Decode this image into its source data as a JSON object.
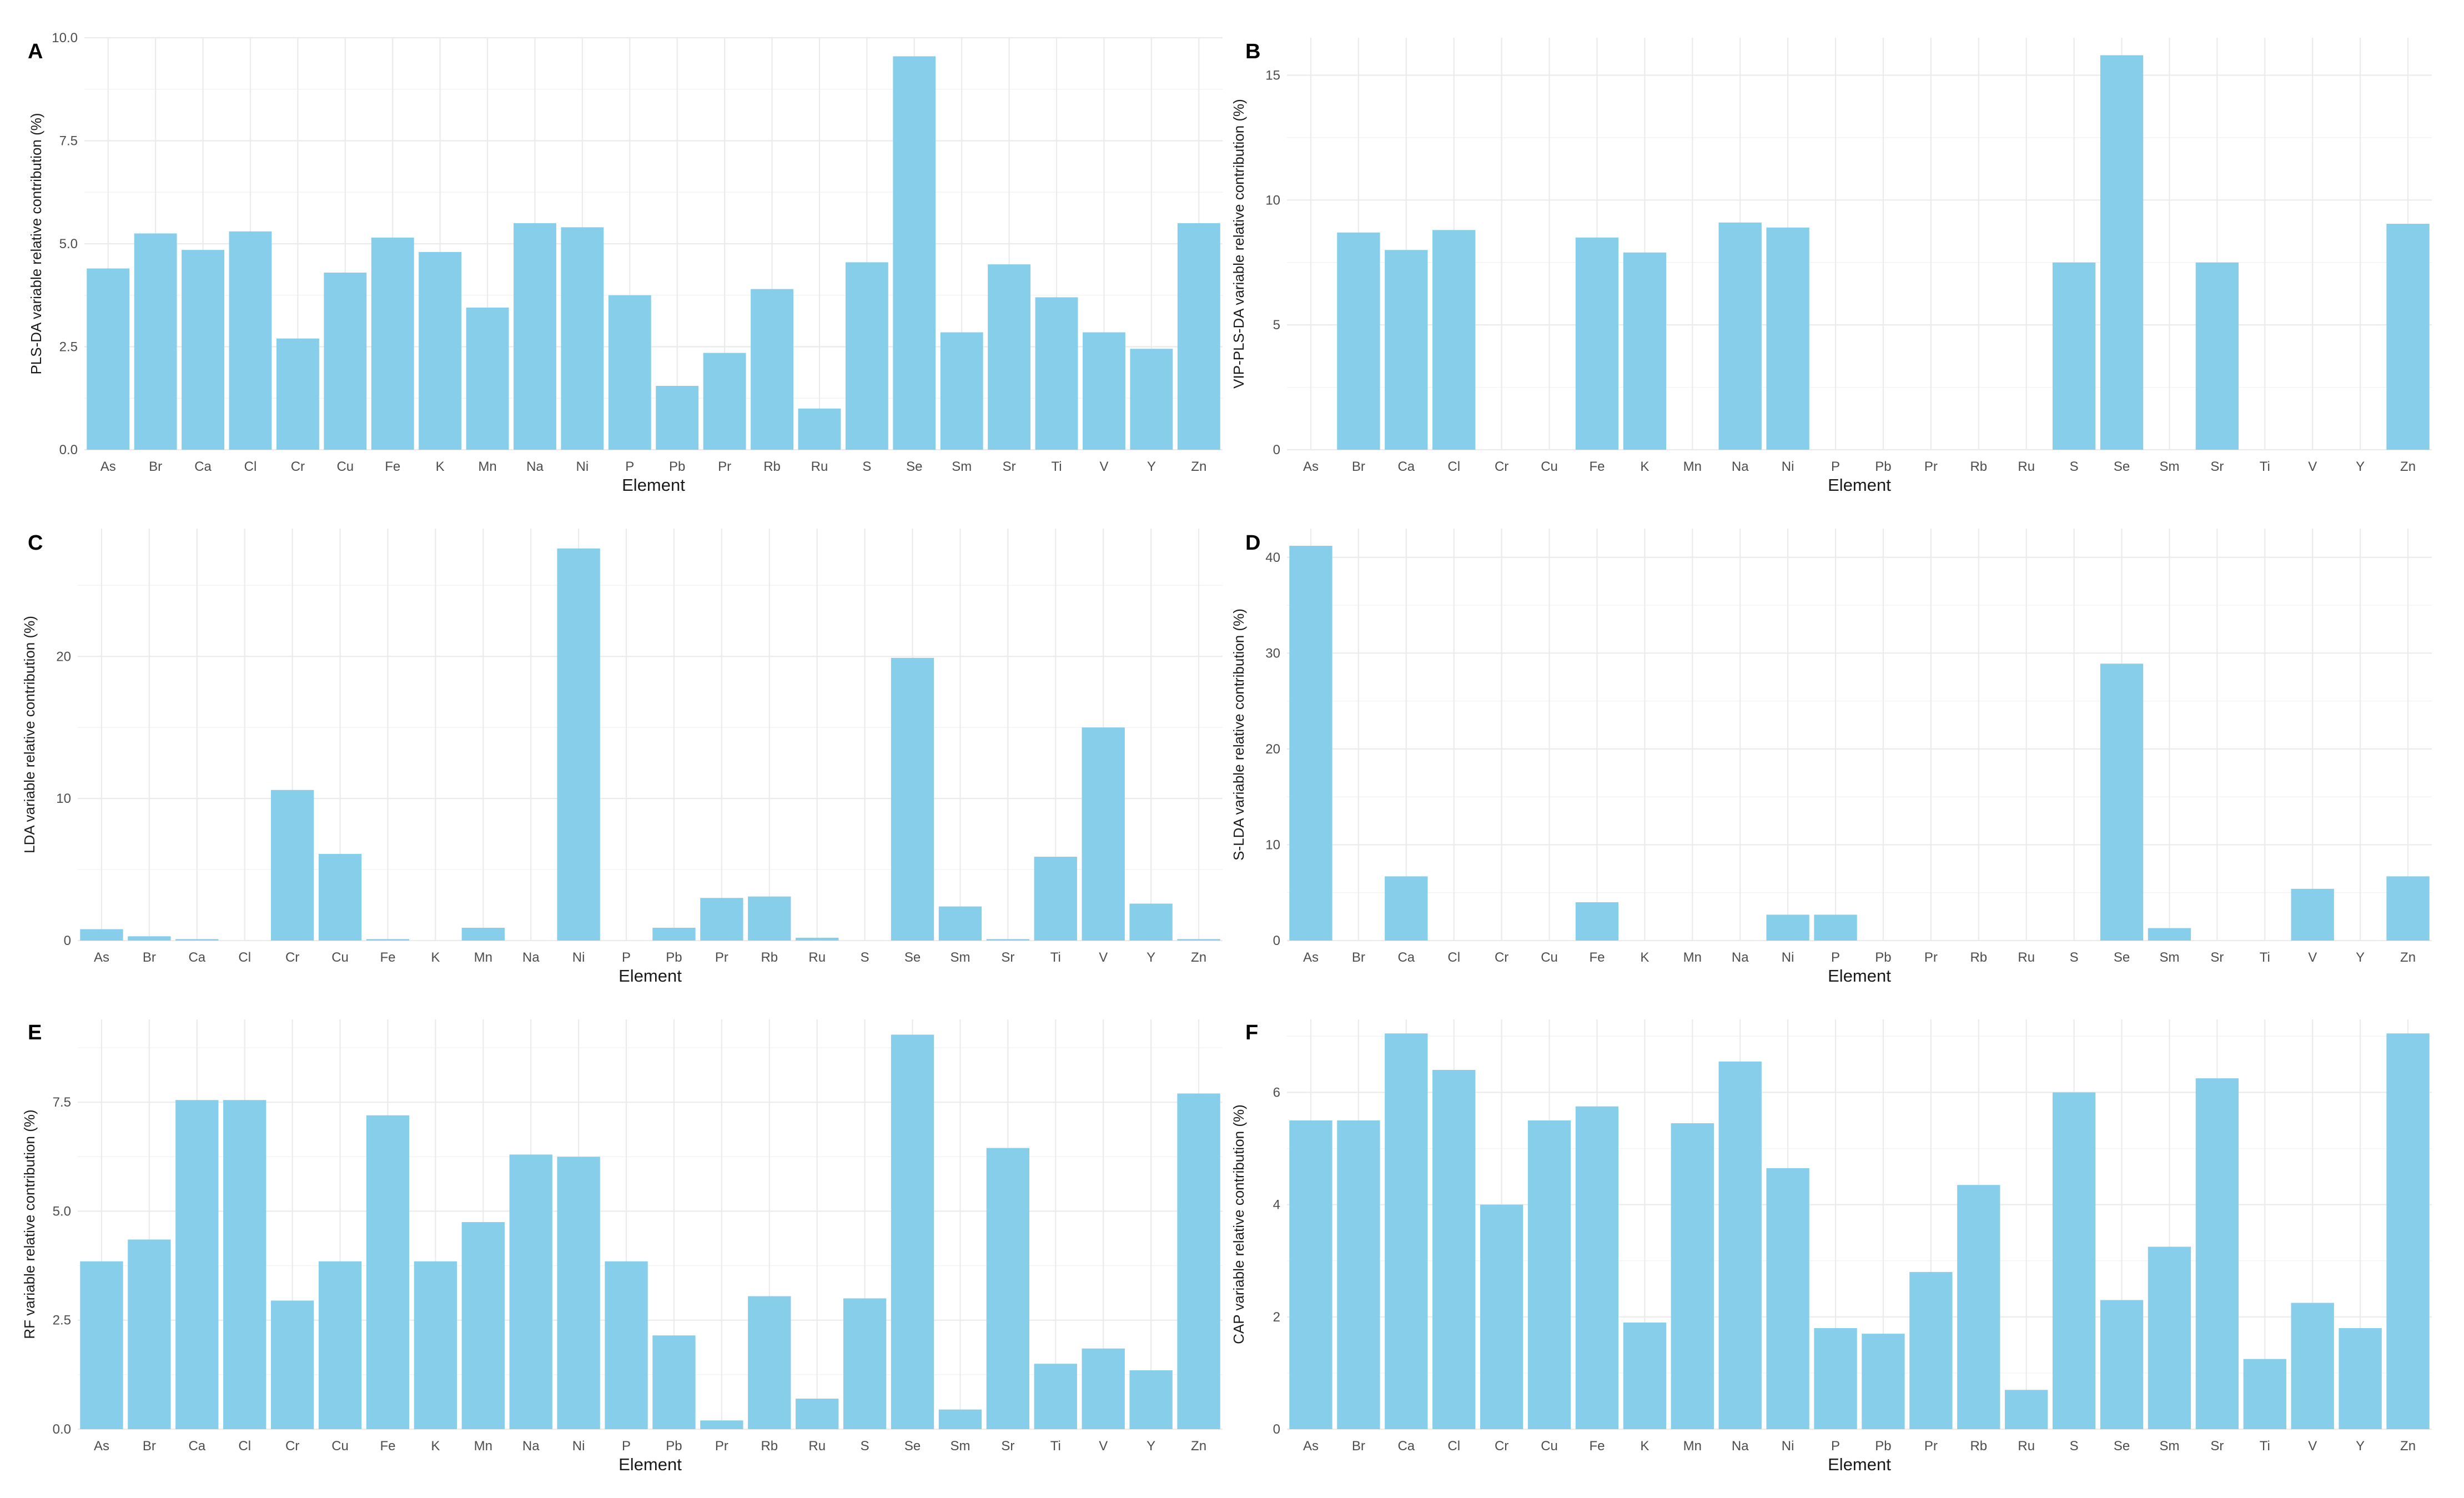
{
  "colors": {
    "bar": "#87ceeb",
    "grid_major": "#ebebeb",
    "grid_minor": "#f3f3f3",
    "text": "#4d4d4d",
    "title": "#1a1a1a"
  },
  "chart_data": [
    {
      "panel": "A",
      "type": "bar",
      "xlabel": "Element",
      "ylabel": "PLS-DA variable relative contribution (%)",
      "categories": [
        "As",
        "Br",
        "Ca",
        "Cl",
        "Cr",
        "Cu",
        "Fe",
        "K",
        "Mn",
        "Na",
        "Ni",
        "P",
        "Pb",
        "Pr",
        "Rb",
        "Ru",
        "S",
        "Se",
        "Sm",
        "Sr",
        "Ti",
        "V",
        "Y",
        "Zn"
      ],
      "values": [
        4.4,
        5.25,
        4.85,
        5.3,
        2.7,
        4.3,
        5.15,
        4.8,
        3.45,
        5.5,
        5.4,
        3.75,
        1.55,
        2.35,
        3.9,
        1.0,
        4.55,
        9.55,
        2.85,
        4.5,
        3.7,
        2.85,
        2.45,
        5.5
      ],
      "ylim": [
        0,
        10
      ],
      "yticks": [
        0,
        2.5,
        5,
        7.5,
        10
      ],
      "ytick_labels": [
        "0.0",
        "2.5",
        "5.0",
        "7.5",
        "10.0"
      ],
      "legend": "none"
    },
    {
      "panel": "B",
      "type": "bar",
      "xlabel": "Element",
      "ylabel": "VIP-PLS-DA variable relative contribution (%)",
      "categories": [
        "As",
        "Br",
        "Ca",
        "Cl",
        "Cr",
        "Cu",
        "Fe",
        "K",
        "Mn",
        "Na",
        "Ni",
        "P",
        "Pb",
        "Pr",
        "Rb",
        "Ru",
        "S",
        "Se",
        "Sm",
        "Sr",
        "Ti",
        "V",
        "Y",
        "Zn"
      ],
      "values": [
        0,
        8.7,
        8.0,
        8.8,
        0,
        0,
        8.5,
        7.9,
        0,
        9.1,
        8.9,
        0,
        0,
        0,
        0,
        0,
        7.5,
        15.8,
        0,
        7.5,
        0,
        0,
        0,
        9.05
      ],
      "ylim": [
        0,
        16.5
      ],
      "yticks": [
        0,
        5,
        10,
        15
      ],
      "ytick_labels": [
        "0",
        "5",
        "10",
        "15"
      ],
      "legend": "none"
    },
    {
      "panel": "C",
      "type": "bar",
      "xlabel": "Element",
      "ylabel": "LDA variable relative contribution (%)",
      "categories": [
        "As",
        "Br",
        "Ca",
        "Cl",
        "Cr",
        "Cu",
        "Fe",
        "K",
        "Mn",
        "Na",
        "Ni",
        "P",
        "Pb",
        "Pr",
        "Rb",
        "Ru",
        "S",
        "Se",
        "Sm",
        "Sr",
        "Ti",
        "V",
        "Y",
        "Zn"
      ],
      "values": [
        0.8,
        0.3,
        0.1,
        0,
        10.6,
        6.1,
        0.1,
        0,
        0.9,
        0,
        27.6,
        0,
        0.9,
        3.0,
        3.1,
        0.2,
        0,
        19.9,
        2.4,
        0.1,
        5.9,
        15.0,
        2.6,
        0.1
      ],
      "ylim": [
        0,
        29
      ],
      "yticks": [
        0,
        10,
        20
      ],
      "ytick_labels": [
        "0",
        "10",
        "20"
      ],
      "legend": "none"
    },
    {
      "panel": "D",
      "type": "bar",
      "xlabel": "Element",
      "ylabel": "S-LDA variable relative contribution (%)",
      "categories": [
        "As",
        "Br",
        "Ca",
        "Cl",
        "Cr",
        "Cu",
        "Fe",
        "K",
        "Mn",
        "Na",
        "Ni",
        "P",
        "Pb",
        "Pr",
        "Rb",
        "Ru",
        "S",
        "Se",
        "Sm",
        "Sr",
        "Ti",
        "V",
        "Y",
        "Zn"
      ],
      "values": [
        41.2,
        0,
        6.7,
        0,
        0,
        0,
        4.0,
        0,
        0,
        0,
        2.7,
        2.7,
        0,
        0,
        0,
        0,
        0,
        28.9,
        1.3,
        0,
        0,
        5.4,
        0,
        6.7
      ],
      "ylim": [
        0,
        43
      ],
      "yticks": [
        0,
        10,
        20,
        30,
        40
      ],
      "ytick_labels": [
        "0",
        "10",
        "20",
        "30",
        "40"
      ],
      "legend": "none"
    },
    {
      "panel": "E",
      "type": "bar",
      "xlabel": "Element",
      "ylabel": "RF variable relative contribution (%)",
      "categories": [
        "As",
        "Br",
        "Ca",
        "Cl",
        "Cr",
        "Cu",
        "Fe",
        "K",
        "Mn",
        "Na",
        "Ni",
        "P",
        "Pb",
        "Pr",
        "Rb",
        "Ru",
        "S",
        "Se",
        "Sm",
        "Sr",
        "Ti",
        "V",
        "Y",
        "Zn"
      ],
      "values": [
        3.85,
        4.35,
        7.55,
        7.55,
        2.95,
        3.85,
        7.2,
        3.85,
        4.75,
        6.3,
        6.25,
        3.85,
        2.15,
        0.2,
        3.05,
        0.7,
        3.0,
        9.05,
        0.45,
        6.45,
        1.5,
        1.85,
        1.35,
        7.7
      ],
      "ylim": [
        0,
        9.4
      ],
      "yticks": [
        0,
        2.5,
        5,
        7.5
      ],
      "ytick_labels": [
        "0.0",
        "2.5",
        "5.0",
        "7.5"
      ],
      "legend": "none"
    },
    {
      "panel": "F",
      "type": "bar",
      "xlabel": "Element",
      "ylabel": "CAP variable relative contribution (%)",
      "categories": [
        "As",
        "Br",
        "Ca",
        "Cl",
        "Cr",
        "Cu",
        "Fe",
        "K",
        "Mn",
        "Na",
        "Ni",
        "P",
        "Pb",
        "Pr",
        "Rb",
        "Ru",
        "S",
        "Se",
        "Sm",
        "Sr",
        "Ti",
        "V",
        "Y",
        "Zn"
      ],
      "values": [
        5.5,
        5.5,
        7.05,
        6.4,
        4.0,
        5.5,
        5.75,
        1.9,
        5.45,
        6.55,
        4.65,
        1.8,
        1.7,
        2.8,
        4.35,
        0.7,
        6.0,
        2.3,
        3.25,
        6.25,
        1.25,
        2.25,
        1.8,
        7.05
      ],
      "ylim": [
        0,
        7.3
      ],
      "yticks": [
        0,
        2,
        4,
        6
      ],
      "ytick_labels": [
        "0",
        "2",
        "4",
        "6"
      ],
      "legend": "none"
    }
  ]
}
